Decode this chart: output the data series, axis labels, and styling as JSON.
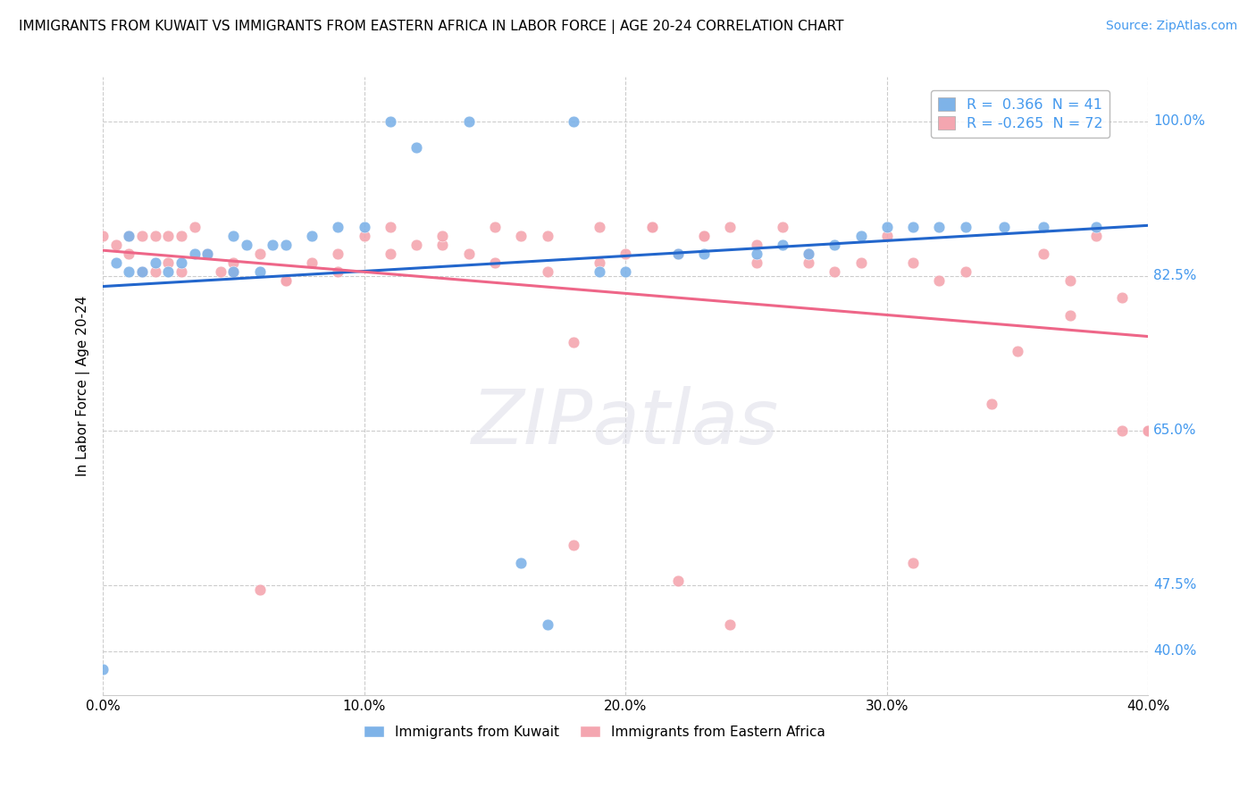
{
  "title": "IMMIGRANTS FROM KUWAIT VS IMMIGRANTS FROM EASTERN AFRICA IN LABOR FORCE | AGE 20-24 CORRELATION CHART",
  "source": "Source: ZipAtlas.com",
  "ylabel": "In Labor Force | Age 20-24",
  "color_kuwait": "#7EB3E8",
  "color_eastern_africa": "#F4A6B0",
  "color_line_kuwait": "#2266CC",
  "color_line_eastern_africa": "#EE6688",
  "color_right_labels": "#4499EE",
  "ytick_values": [
    1.0,
    0.825,
    0.65,
    0.475,
    0.4
  ],
  "ytick_labels": [
    "100.0%",
    "82.5%",
    "65.0%",
    "47.5%",
    "40.0%"
  ],
  "xlim": [
    0.0,
    0.4
  ],
  "ylim": [
    0.35,
    1.05
  ],
  "kuwait_label": "Immigrants from Kuwait",
  "ea_label": "Immigrants from Eastern Africa",
  "r_kuwait": 0.366,
  "n_kuwait": 41,
  "r_ea": -0.265,
  "n_ea": 72,
  "kuwait_x": [
    0.0,
    0.005,
    0.01,
    0.01,
    0.015,
    0.02,
    0.025,
    0.03,
    0.035,
    0.04,
    0.05,
    0.055,
    0.06,
    0.065,
    0.07,
    0.12,
    0.14,
    0.18,
    0.19,
    0.22,
    0.23,
    0.27,
    0.28,
    0.29,
    0.3,
    0.31,
    0.32,
    0.33,
    0.345,
    0.36,
    0.38,
    0.05,
    0.08,
    0.09,
    0.1,
    0.11,
    0.16,
    0.17,
    0.2,
    0.25,
    0.26
  ],
  "kuwait_y": [
    0.38,
    0.84,
    0.87,
    0.83,
    0.83,
    0.84,
    0.83,
    0.84,
    0.85,
    0.85,
    0.83,
    0.86,
    0.83,
    0.86,
    0.86,
    0.97,
    1.0,
    1.0,
    0.83,
    0.85,
    0.85,
    0.85,
    0.86,
    0.87,
    0.88,
    0.88,
    0.88,
    0.88,
    0.88,
    0.88,
    0.88,
    0.87,
    0.87,
    0.88,
    0.88,
    1.0,
    0.5,
    0.43,
    0.83,
    0.85,
    0.86
  ],
  "ea_x": [
    0.0,
    0.005,
    0.01,
    0.01,
    0.015,
    0.015,
    0.02,
    0.02,
    0.025,
    0.025,
    0.03,
    0.03,
    0.035,
    0.04,
    0.04,
    0.045,
    0.05,
    0.05,
    0.06,
    0.07,
    0.08,
    0.09,
    0.1,
    0.11,
    0.12,
    0.13,
    0.14,
    0.15,
    0.16,
    0.17,
    0.18,
    0.19,
    0.2,
    0.21,
    0.22,
    0.23,
    0.24,
    0.25,
    0.26,
    0.27,
    0.28,
    0.3,
    0.32,
    0.34,
    0.36,
    0.38,
    0.4,
    0.07,
    0.09,
    0.11,
    0.13,
    0.15,
    0.17,
    0.19,
    0.21,
    0.23,
    0.25,
    0.27,
    0.29,
    0.31,
    0.33,
    0.35,
    0.37,
    0.39,
    0.18,
    0.22,
    0.24,
    0.31,
    0.37,
    0.39,
    0.06,
    0.4
  ],
  "ea_y": [
    0.87,
    0.86,
    0.85,
    0.87,
    0.87,
    0.83,
    0.83,
    0.87,
    0.87,
    0.84,
    0.87,
    0.83,
    0.88,
    0.85,
    0.85,
    0.83,
    0.83,
    0.84,
    0.85,
    0.82,
    0.84,
    0.85,
    0.87,
    0.88,
    0.86,
    0.86,
    0.85,
    0.88,
    0.87,
    0.87,
    0.75,
    0.88,
    0.85,
    0.88,
    0.85,
    0.87,
    0.88,
    0.84,
    0.88,
    0.84,
    0.83,
    0.87,
    0.82,
    0.68,
    0.85,
    0.87,
    0.65,
    0.82,
    0.83,
    0.85,
    0.87,
    0.84,
    0.83,
    0.84,
    0.88,
    0.87,
    0.86,
    0.85,
    0.84,
    0.84,
    0.83,
    0.74,
    0.82,
    0.65,
    0.52,
    0.48,
    0.43,
    0.5,
    0.78,
    0.8,
    0.47,
    0.65
  ]
}
